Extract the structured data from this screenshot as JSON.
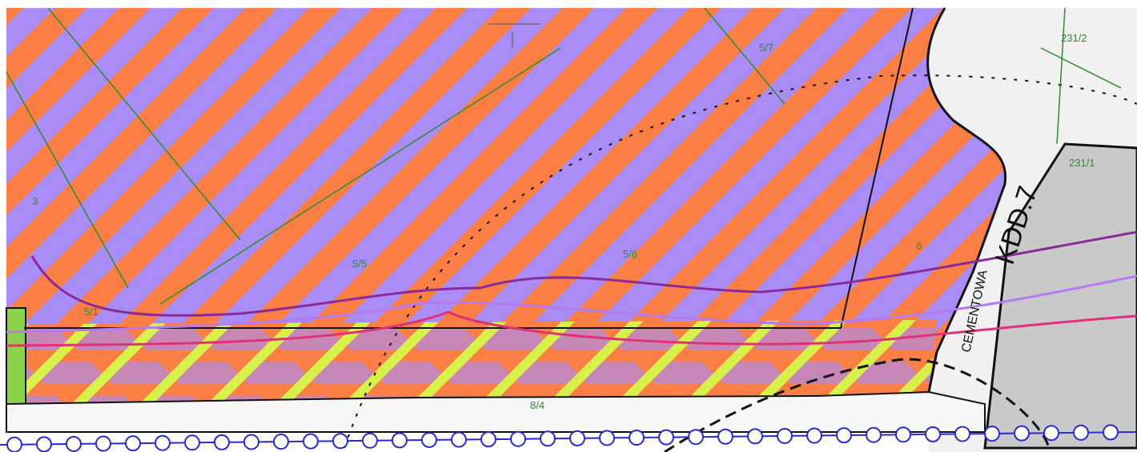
{
  "labels": {
    "plot_5_7": "5/7",
    "plot_231_2": "231/2",
    "plot_3": "3",
    "plot_231_1": "231/1",
    "road_code": "KDD.7",
    "street_name": "CEMENTOWA",
    "plot_5_5": "5/5",
    "plot_5_6": "5/6",
    "plot_6": "6",
    "plot_5_1": "5/1",
    "plot_8_4": "8/4"
  }
}
